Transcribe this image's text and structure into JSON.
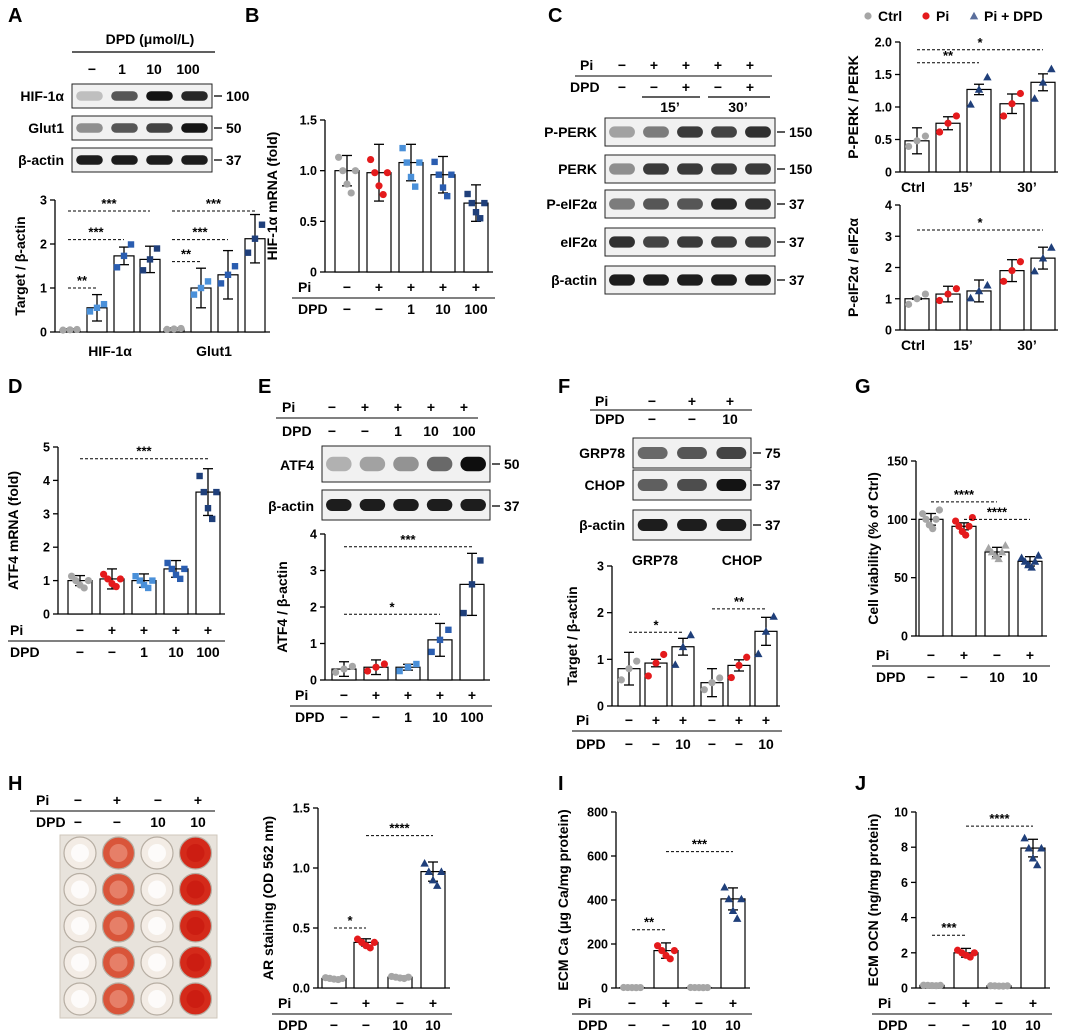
{
  "panel_labels": [
    "A",
    "B",
    "C",
    "D",
    "E",
    "F",
    "G",
    "H",
    "I",
    "J"
  ],
  "legend": {
    "items": [
      {
        "label": "Ctrl",
        "marker": "circle",
        "color": "#a6a6a6"
      },
      {
        "label": "Pi",
        "marker": "circle",
        "color": "#e41a1c"
      },
      {
        "label": "Pi + DPD",
        "marker": "triangle",
        "color": "#5a6e9c"
      }
    ]
  },
  "colors": {
    "ctrl": "#a6a6a6",
    "pi": "#e41a1c",
    "d1": "#4a90d9",
    "d10": "#2a5db0",
    "d100": "#1f3f7a",
    "tri": "#1f3f7a"
  },
  "row_labels": {
    "pi": "Pi",
    "dpd": "DPD"
  },
  "blotA": {
    "header": "DPD (μmol/L)",
    "lanes": [
      "−",
      "1",
      "10",
      "100"
    ],
    "bands": [
      {
        "name": "HIF-1α",
        "kda": "100"
      },
      {
        "name": "Glut1",
        "kda": "50"
      },
      {
        "name": "β-actin",
        "kda": "37"
      }
    ]
  },
  "blotC": {
    "pi": [
      "−",
      "+",
      "+",
      "+",
      "+"
    ],
    "dpd": [
      "−",
      "−",
      "+",
      "−",
      "+"
    ],
    "times": [
      "15’",
      "30’"
    ],
    "bands": [
      {
        "name": "P-PERK",
        "kda": "150"
      },
      {
        "name": "PERK",
        "kda": "150"
      },
      {
        "name": "P-eIF2α",
        "kda": "37"
      },
      {
        "name": "eIF2α",
        "kda": "37"
      },
      {
        "name": "β-actin",
        "kda": "37"
      }
    ]
  },
  "blotE": {
    "pi": [
      "−",
      "+",
      "+",
      "+",
      "+"
    ],
    "dpd": [
      "−",
      "−",
      "1",
      "10",
      "100"
    ],
    "bands": [
      {
        "name": "ATF4",
        "kda": "50"
      },
      {
        "name": "β-actin",
        "kda": "37"
      }
    ]
  },
  "blotF": {
    "pi": [
      "−",
      "+",
      "+"
    ],
    "dpd": [
      "−",
      "−",
      "10"
    ],
    "bands": [
      {
        "name": "GRP78",
        "kda": "75"
      },
      {
        "name": "CHOP",
        "kda": "37"
      },
      {
        "name": "β-actin",
        "kda": "37"
      }
    ]
  },
  "plateH": {
    "pi": [
      "−",
      "+",
      "−",
      "+"
    ],
    "dpd": [
      "−",
      "−",
      "10",
      "10"
    ]
  },
  "chart_data": [
    {
      "id": "A",
      "type": "bar",
      "ylabel": "Target / β-actin",
      "ylim": [
        0,
        3
      ],
      "yticks": [
        "0",
        "1",
        "2",
        "3"
      ],
      "groups": [
        "HIF-1α",
        "Glut1"
      ],
      "series": [
        {
          "name": "−",
          "values": [
            0.05,
            0.07
          ]
        },
        {
          "name": "1",
          "values": [
            0.55,
            1.0
          ]
        },
        {
          "name": "10",
          "values": [
            1.73,
            1.3
          ]
        },
        {
          "name": "100",
          "values": [
            1.65,
            2.12
          ]
        }
      ],
      "annotations": [
        "**",
        "***",
        "***",
        "**",
        "***",
        "***"
      ]
    },
    {
      "id": "B",
      "type": "bar",
      "ylabel": "HIF-1α mRNA (fold)",
      "ylim": [
        0,
        1.5
      ],
      "yticks": [
        "0",
        "0.5",
        "1.0",
        "1.5"
      ],
      "pi": [
        "−",
        "+",
        "+",
        "+",
        "+"
      ],
      "dpd": [
        "−",
        "−",
        "1",
        "10",
        "100"
      ],
      "values": [
        1.0,
        0.98,
        1.08,
        0.96,
        0.68
      ]
    },
    {
      "id": "C1",
      "type": "bar",
      "ylabel": "P-PERK / PERK",
      "ylim": [
        0,
        2.0
      ],
      "yticks": [
        "0",
        "0.5",
        "1.0",
        "1.5",
        "2.0"
      ],
      "xlabels": [
        "Ctrl",
        "15’",
        "30’"
      ],
      "values": [
        0.48,
        0.75,
        1.27,
        1.05,
        1.38
      ],
      "annotations": [
        "*",
        "**"
      ]
    },
    {
      "id": "C2",
      "type": "bar",
      "ylabel": "P-eIF2α / eIF2α",
      "ylim": [
        0,
        4
      ],
      "yticks": [
        "0",
        "1",
        "2",
        "3",
        "4"
      ],
      "xlabels": [
        "Ctrl",
        "15’",
        "30’"
      ],
      "values": [
        1.0,
        1.15,
        1.25,
        1.9,
        2.3
      ],
      "annotations": [
        "*"
      ]
    },
    {
      "id": "D",
      "type": "bar",
      "ylabel": "ATF4 mRNA (fold)",
      "ylim": [
        0,
        5
      ],
      "yticks": [
        "0",
        "1",
        "2",
        "3",
        "4",
        "5"
      ],
      "pi": [
        "−",
        "+",
        "+",
        "+",
        "+"
      ],
      "dpd": [
        "−",
        "−",
        "1",
        "10",
        "100"
      ],
      "values": [
        1.0,
        1.05,
        1.0,
        1.35,
        3.65
      ],
      "annotations": [
        "***"
      ]
    },
    {
      "id": "E",
      "type": "bar",
      "ylabel": "ATF4 / β-actin",
      "ylim": [
        0,
        4
      ],
      "yticks": [
        "0",
        "1",
        "2",
        "3",
        "4"
      ],
      "pi": [
        "−",
        "+",
        "+",
        "+",
        "+"
      ],
      "dpd": [
        "−",
        "−",
        "1",
        "10",
        "100"
      ],
      "values": [
        0.3,
        0.35,
        0.35,
        1.1,
        2.62
      ],
      "annotations": [
        "*",
        "***"
      ]
    },
    {
      "id": "F",
      "type": "bar",
      "ylabel": "Target / β-actin",
      "ylim": [
        0,
        3
      ],
      "yticks": [
        "0",
        "1",
        "2",
        "3"
      ],
      "groups": [
        "GRP78",
        "CHOP"
      ],
      "pi": [
        "−",
        "+",
        "+",
        "−",
        "+",
        "+"
      ],
      "dpd": [
        "−",
        "−",
        "10",
        "−",
        "−",
        "10"
      ],
      "values": [
        0.8,
        0.92,
        1.27,
        0.5,
        0.87,
        1.6
      ],
      "annotations": [
        "*",
        "**"
      ]
    },
    {
      "id": "G",
      "type": "bar",
      "ylabel": "Cell viability (% of Ctrl)",
      "ylim": [
        0,
        150
      ],
      "yticks": [
        "0",
        "50",
        "100",
        "150"
      ],
      "pi": [
        "−",
        "+",
        "−",
        "+"
      ],
      "dpd": [
        "−",
        "−",
        "10",
        "10"
      ],
      "values": [
        100,
        94,
        72,
        64
      ],
      "annotations": [
        "****",
        "****"
      ]
    },
    {
      "id": "H",
      "type": "bar",
      "ylabel": "AR staining (OD 562 nm)",
      "ylim": [
        0,
        1.5
      ],
      "yticks": [
        "0.0",
        "0.5",
        "1.0",
        "1.5"
      ],
      "pi": [
        "−",
        "+",
        "−",
        "+"
      ],
      "dpd": [
        "−",
        "−",
        "10",
        "10"
      ],
      "values": [
        0.08,
        0.38,
        0.09,
        0.97
      ],
      "annotations": [
        "*",
        "****"
      ]
    },
    {
      "id": "I",
      "type": "bar",
      "ylabel": "ECM Ca (μg Ca/mg protein)",
      "ylim": [
        0,
        800
      ],
      "yticks": [
        "0",
        "200",
        "400",
        "600",
        "800"
      ],
      "pi": [
        "−",
        "+",
        "−",
        "+"
      ],
      "dpd": [
        "−",
        "−",
        "10",
        "10"
      ],
      "values": [
        2,
        170,
        2,
        405
      ],
      "annotations": [
        "**",
        "***"
      ]
    },
    {
      "id": "J",
      "type": "bar",
      "ylabel": "ECM OCN (ng/mg protein)",
      "ylim": [
        0,
        10
      ],
      "yticks": [
        "0",
        "2",
        "4",
        "6",
        "8",
        "10"
      ],
      "pi": [
        "−",
        "+",
        "−",
        "+"
      ],
      "dpd": [
        "−",
        "−",
        "10",
        "10"
      ],
      "values": [
        0.15,
        2.0,
        0.12,
        7.95
      ],
      "annotations": [
        "***",
        "****"
      ]
    }
  ]
}
